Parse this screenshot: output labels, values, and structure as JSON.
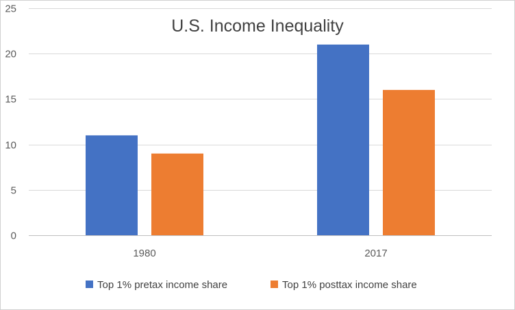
{
  "chart_data": {
    "type": "bar",
    "title": "U.S. Income Inequality",
    "xlabel": "",
    "ylabel": "",
    "categories": [
      "1980",
      "2017"
    ],
    "series": [
      {
        "name": "Top 1% pretax income share",
        "values": [
          11,
          21
        ],
        "color": "#4472C4"
      },
      {
        "name": "Top 1% posttax income share",
        "values": [
          9,
          16
        ],
        "color": "#ED7D31"
      }
    ],
    "ylim": [
      0,
      25
    ],
    "yticks": [
      0,
      5,
      10,
      15,
      20,
      25
    ],
    "grid": true,
    "legend_position": "bottom"
  }
}
